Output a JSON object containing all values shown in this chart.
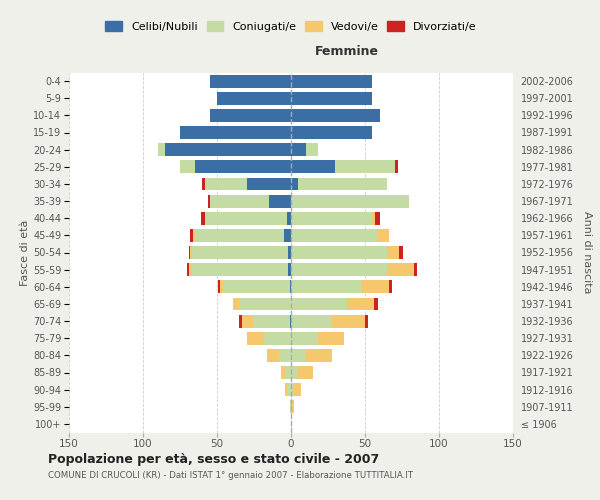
{
  "age_groups": [
    "100+",
    "95-99",
    "90-94",
    "85-89",
    "80-84",
    "75-79",
    "70-74",
    "65-69",
    "60-64",
    "55-59",
    "50-54",
    "45-49",
    "40-44",
    "35-39",
    "30-34",
    "25-29",
    "20-24",
    "15-19",
    "10-14",
    "5-9",
    "0-4"
  ],
  "birth_years": [
    "≤ 1906",
    "1907-1911",
    "1912-1916",
    "1917-1921",
    "1922-1926",
    "1927-1931",
    "1932-1936",
    "1937-1941",
    "1942-1946",
    "1947-1951",
    "1952-1956",
    "1957-1961",
    "1962-1966",
    "1967-1971",
    "1972-1976",
    "1977-1981",
    "1982-1986",
    "1987-1991",
    "1992-1996",
    "1997-2001",
    "2002-2006"
  ],
  "male": {
    "celibi": [
      0,
      0,
      0,
      0,
      0,
      0,
      1,
      0,
      1,
      2,
      2,
      5,
      3,
      15,
      30,
      65,
      85,
      75,
      55,
      50,
      55
    ],
    "coniugati": [
      0,
      1,
      3,
      4,
      8,
      18,
      25,
      35,
      45,
      65,
      65,
      60,
      55,
      40,
      28,
      10,
      5,
      0,
      0,
      0,
      0
    ],
    "vedovi": [
      0,
      0,
      1,
      3,
      8,
      12,
      7,
      4,
      2,
      2,
      1,
      1,
      0,
      0,
      0,
      0,
      0,
      0,
      0,
      0,
      0
    ],
    "divorziati": [
      0,
      0,
      0,
      0,
      0,
      0,
      2,
      0,
      1,
      1,
      1,
      2,
      3,
      1,
      2,
      0,
      0,
      0,
      0,
      0,
      0
    ]
  },
  "female": {
    "nubili": [
      0,
      0,
      0,
      0,
      0,
      0,
      0,
      0,
      0,
      0,
      0,
      0,
      0,
      0,
      5,
      30,
      10,
      55,
      60,
      55,
      55
    ],
    "coniugate": [
      0,
      0,
      2,
      5,
      10,
      18,
      28,
      38,
      48,
      65,
      65,
      58,
      55,
      80,
      60,
      40,
      8,
      0,
      0,
      0,
      0
    ],
    "vedove": [
      0,
      2,
      5,
      10,
      18,
      18,
      22,
      18,
      18,
      18,
      8,
      8,
      2,
      0,
      0,
      0,
      0,
      0,
      0,
      0,
      0
    ],
    "divorziate": [
      0,
      0,
      0,
      0,
      0,
      0,
      2,
      3,
      2,
      2,
      3,
      0,
      3,
      0,
      0,
      2,
      0,
      0,
      0,
      0,
      0
    ]
  },
  "colors": {
    "celibi": "#3a6ea5",
    "coniugati": "#c5dba4",
    "vedovi": "#f5c86e",
    "divorziati": "#cc2222"
  },
  "xlim": 150,
  "title": "Popolazione per età, sesso e stato civile - 2007",
  "subtitle": "COMUNE DI CRUCOLI (KR) - Dati ISTAT 1° gennaio 2007 - Elaborazione TUTTITALIA.IT",
  "ylabel": "Fasce di età",
  "ylabel2": "Anni di nascita",
  "xlabel_femmine": "Femmine",
  "bg_color": "#f0f0eb",
  "plot_bg": "#ffffff"
}
